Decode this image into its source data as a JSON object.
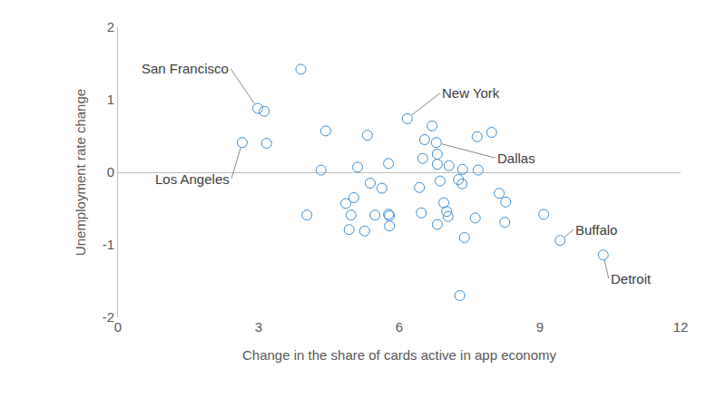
{
  "chart_data": {
    "type": "scatter",
    "x_label": "Change in the share of cards active in app economy",
    "y_label": "Unemployment rate change",
    "x": [
      3.9,
      2.98,
      3.12,
      3.17,
      2.65,
      4.43,
      5.32,
      4.33,
      4.03,
      5.11,
      5.77,
      4.86,
      5.03,
      5.38,
      5.63,
      4.97,
      4.93,
      5.26,
      5.48,
      5.77,
      5.79,
      5.79,
      6.17,
      6.7,
      6.54,
      6.5,
      6.79,
      6.81,
      6.81,
      7.06,
      7.66,
      7.97,
      7.35,
      7.68,
      6.43,
      6.87,
      7.26,
      7.34,
      6.47,
      6.95,
      7.01,
      7.04,
      6.81,
      7.62,
      7.39,
      7.29,
      8.13,
      8.27,
      8.25,
      9.08,
      9.43,
      10.35
    ],
    "values": [
      1.42,
      0.88,
      0.84,
      0.4,
      0.41,
      0.57,
      0.51,
      0.03,
      -0.59,
      0.07,
      0.12,
      -0.43,
      -0.35,
      -0.15,
      -0.22,
      -0.59,
      -0.79,
      -0.81,
      -0.59,
      -0.58,
      -0.6,
      -0.74,
      0.74,
      0.64,
      0.45,
      0.19,
      0.41,
      0.25,
      0.11,
      0.09,
      0.49,
      0.55,
      0.04,
      0.03,
      -0.21,
      -0.12,
      -0.1,
      -0.16,
      -0.56,
      -0.42,
      -0.54,
      -0.61,
      -0.72,
      -0.63,
      -0.9,
      -1.7,
      -0.29,
      -0.41,
      -0.69,
      -0.58,
      -0.94,
      -1.14
    ],
    "color": "#3f8fd2",
    "marker": "circle-open",
    "xlim": [
      0,
      12
    ],
    "xticks": [
      0,
      3,
      6,
      9,
      12
    ],
    "ylim": [
      -2,
      2
    ],
    "yticks": [
      -2,
      -1,
      0,
      1,
      2
    ],
    "grid": false,
    "annotations": [
      {
        "text": "San Francisco",
        "x": 2.98,
        "y": 0.88
      },
      {
        "text": "Los Angeles",
        "x": 2.65,
        "y": 0.41
      },
      {
        "text": "New York",
        "x": 6.17,
        "y": 0.74
      },
      {
        "text": "Dallas",
        "x": 6.79,
        "y": 0.41
      },
      {
        "text": "Buffalo",
        "x": 9.43,
        "y": -0.94
      },
      {
        "text": "Detroit",
        "x": 10.35,
        "y": -1.14
      }
    ]
  }
}
